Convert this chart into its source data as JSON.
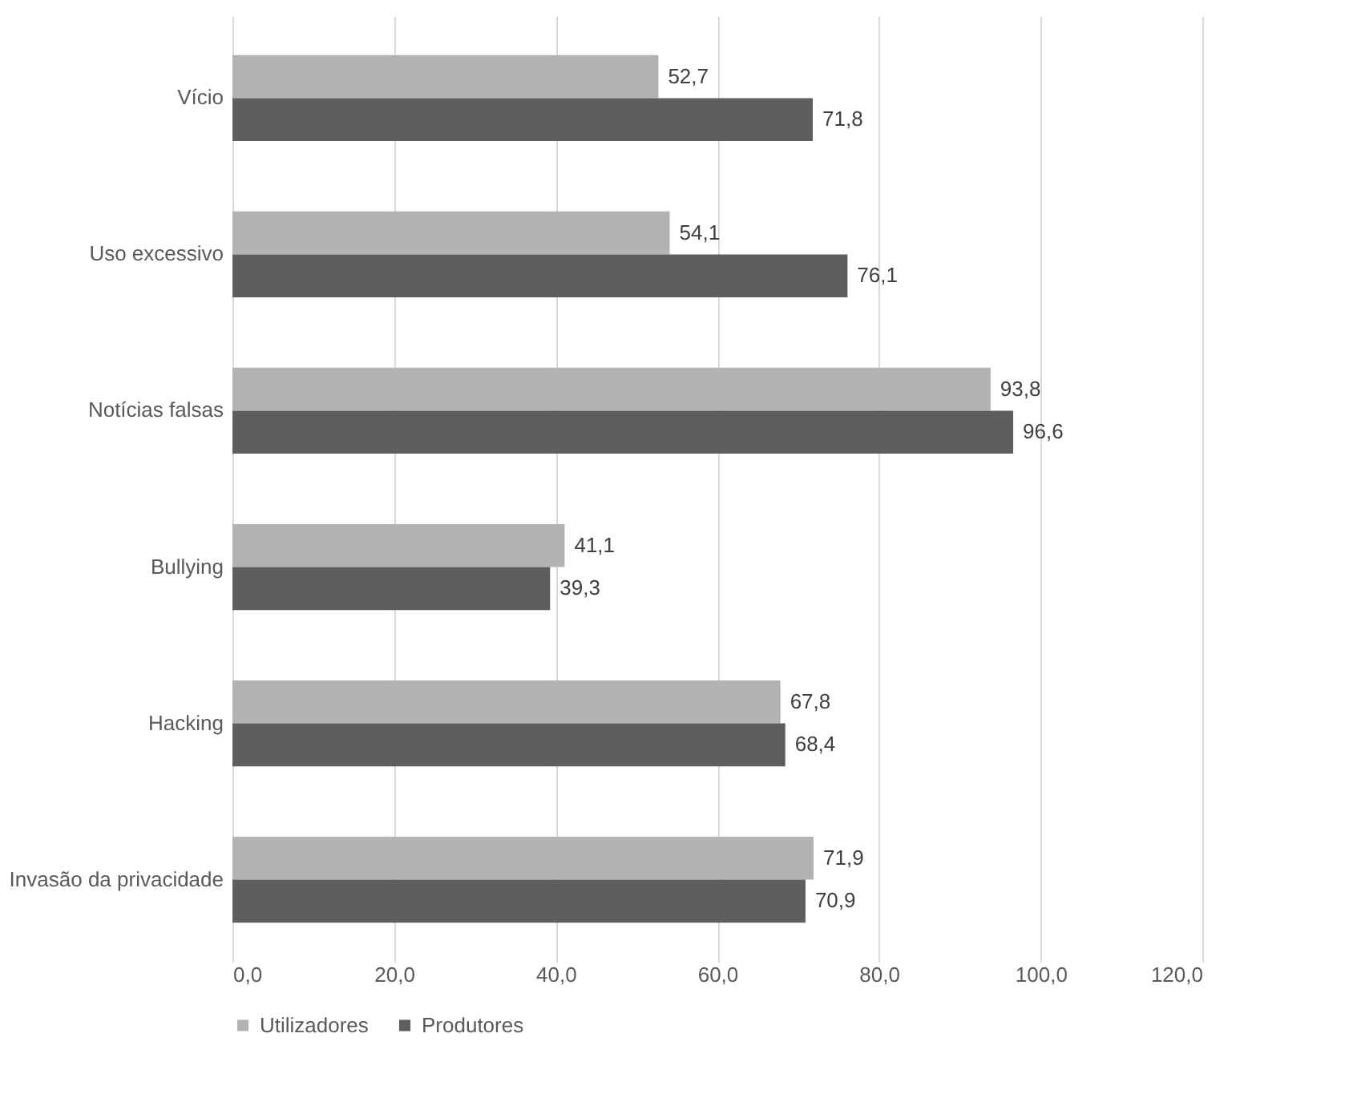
{
  "chart_data": {
    "type": "bar",
    "orientation": "horizontal",
    "categories": [
      "Vício",
      "Uso excessivo",
      "Notícias falsas",
      "Bullying",
      "Hacking",
      "Invasão da privacidade"
    ],
    "series": [
      {
        "name": "Utilizadores",
        "color": "#b3b3b3",
        "values": [
          52.7,
          54.1,
          93.8,
          41.1,
          67.8,
          71.9
        ],
        "value_labels": [
          "52,7",
          "54,1",
          "93,8",
          "41,1",
          "67,8",
          "71,9"
        ]
      },
      {
        "name": "Produtores",
        "color": "#5e5e5e",
        "values": [
          71.8,
          76.1,
          96.6,
          39.3,
          68.4,
          70.9
        ],
        "value_labels": [
          "71,8",
          "76,1",
          "96,6",
          "39,3",
          "68,4",
          "70,9"
        ]
      }
    ],
    "xlim": [
      0,
      120
    ],
    "xticks": [
      {
        "value": 0,
        "label": "0,0"
      },
      {
        "value": 20,
        "label": "20,0"
      },
      {
        "value": 40,
        "label": "40,0"
      },
      {
        "value": 60,
        "label": "60,0"
      },
      {
        "value": 80,
        "label": "80,0"
      },
      {
        "value": 100,
        "label": "100,0"
      },
      {
        "value": 120,
        "label": "120,0"
      }
    ],
    "grid": "x",
    "legend": "bottom"
  }
}
